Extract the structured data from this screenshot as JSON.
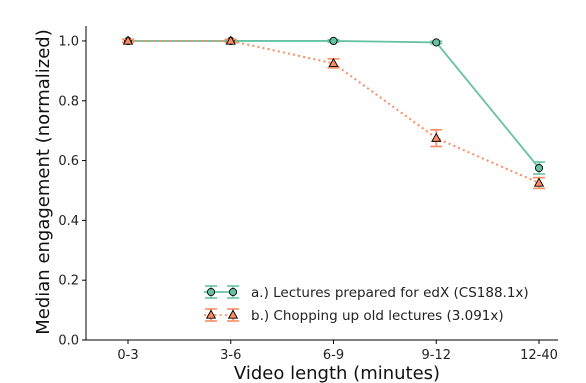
{
  "chart_data": {
    "type": "line",
    "categories": [
      "0-3",
      "3-6",
      "6-9",
      "9-12",
      "12-40"
    ],
    "xlabel": "Video length (minutes)",
    "ylabel": "Median engagement (normalized)",
    "ylim": [
      0.0,
      1.05
    ],
    "yticks": [
      0.0,
      0.2,
      0.4,
      0.6,
      0.8,
      1.0
    ],
    "grid": false,
    "legend_position": "lower-center",
    "series": [
      {
        "name": "a.) Lectures prepared for edX (CS188.1x)",
        "values": [
          1.0,
          1.0,
          1.0,
          0.995,
          0.575
        ],
        "errors": [
          0.005,
          0.005,
          0.004,
          0.004,
          0.02
        ],
        "color": "#66c2a5",
        "line_style": "solid",
        "marker": "circle"
      },
      {
        "name": "b.) Chopping up old lectures (3.091x)",
        "values": [
          1.0,
          1.0,
          0.925,
          0.675,
          0.525
        ],
        "errors": [
          0.005,
          0.005,
          0.015,
          0.028,
          0.018
        ],
        "color": "#fc8d62",
        "line_style": "dotted",
        "marker": "triangle"
      }
    ]
  }
}
